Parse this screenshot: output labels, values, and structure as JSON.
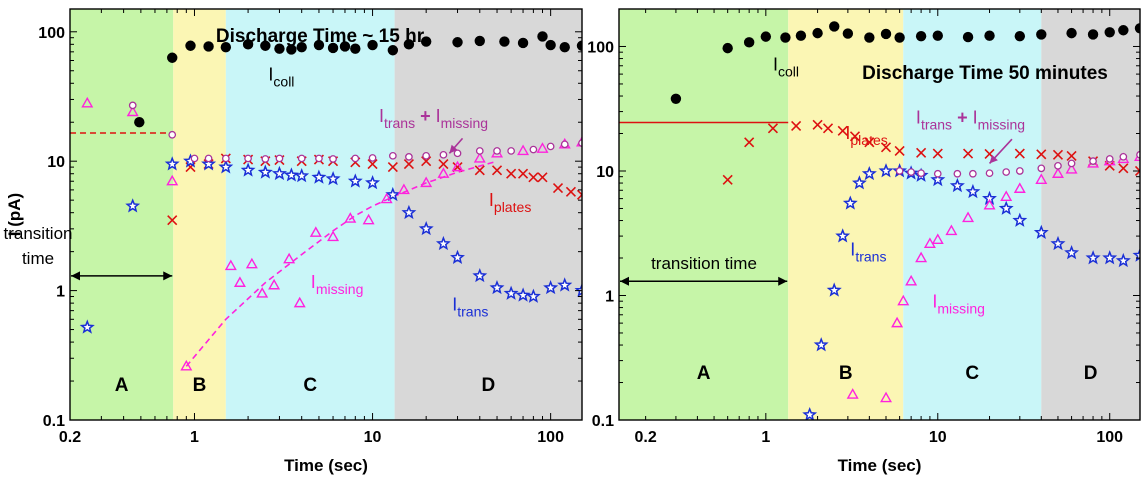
{
  "figure": {
    "panels": [
      "left",
      "right"
    ]
  },
  "chart_data": [
    {
      "type": "scatter",
      "title": "Discharge Time ~ 15 hr",
      "xlabel": "Time (sec)",
      "ylabel": "I (pA)",
      "x_scale": "log",
      "y_scale": "log",
      "xlim": [
        0.2,
        150
      ],
      "ylim": [
        0.1,
        150
      ],
      "x_ticks": [
        {
          "v": 0.2,
          "label": "0.2"
        },
        {
          "v": 1,
          "label": "1"
        },
        {
          "v": 10,
          "label": "10"
        },
        {
          "v": 100,
          "label": "100"
        }
      ],
      "y_ticks": [
        {
          "v": 0.1,
          "label": "0.1"
        },
        {
          "v": 1,
          "label": "1"
        },
        {
          "v": 10,
          "label": "10"
        },
        {
          "v": 100,
          "label": "100"
        }
      ],
      "regions": [
        {
          "label": "A",
          "from": 0.2,
          "to": 0.76,
          "color": "#c6f5a8"
        },
        {
          "label": "B",
          "from": 0.76,
          "to": 1.5,
          "color": "#fbf6b4"
        },
        {
          "label": "C",
          "from": 1.5,
          "to": 13.3,
          "color": "#c9f6f8"
        },
        {
          "label": "D",
          "from": 13.3,
          "to": 150,
          "color": "#d8d8d8"
        }
      ],
      "transition_label": "transition time",
      "transition_arrow": {
        "from": 0.2,
        "to": 0.76,
        "y": 1.3
      },
      "series": [
        {
          "name": "I_coll",
          "label_base": "I",
          "label_sub": "coll",
          "color": "#000000",
          "marker": "filled-circle",
          "x": [
            0.49,
            0.75,
            0.95,
            1.2,
            1.5,
            2,
            2.5,
            3,
            3.5,
            4,
            5,
            6,
            7,
            8,
            10,
            13,
            16,
            20,
            30,
            40,
            55,
            70,
            90,
            100,
            120,
            150
          ],
          "y": [
            20,
            63,
            78,
            77,
            76,
            80,
            78,
            74,
            73,
            76,
            79,
            75,
            77,
            74,
            79,
            72,
            80,
            84,
            83,
            85,
            84,
            82,
            92,
            79,
            76,
            78
          ]
        },
        {
          "name": "I_plates",
          "label_base": "I",
          "label_sub": "plates",
          "color": "#dd1111",
          "marker": "x",
          "x": [
            0.75,
            0.95,
            1.2,
            1.5,
            2,
            2.5,
            3,
            4,
            5,
            6,
            8,
            10,
            13,
            16,
            20,
            25,
            30,
            40,
            50,
            60,
            70,
            80,
            90,
            110,
            130,
            150
          ],
          "y": [
            3.5,
            9,
            9.5,
            10.5,
            10.3,
            10,
            10.2,
            10,
            10.3,
            10,
            9.8,
            9.5,
            9,
            9.5,
            10,
            9.5,
            9,
            8.5,
            8.5,
            8,
            8,
            7.5,
            7.5,
            6.2,
            5.8,
            5.5
          ]
        },
        {
          "name": "I_trans",
          "label_base": "I",
          "label_sub": "trans",
          "color": "#1a2fd6",
          "marker": "star",
          "x": [
            0.25,
            0.45,
            0.75,
            0.95,
            1.2,
            1.5,
            2,
            2.5,
            3,
            3.5,
            4,
            5,
            6,
            8,
            10,
            13,
            16,
            20,
            25,
            30,
            40,
            50,
            60,
            70,
            80,
            100,
            120,
            150
          ],
          "y": [
            0.52,
            4.5,
            9.5,
            10,
            9.5,
            9,
            8.5,
            8.2,
            8,
            7.8,
            7.7,
            7.5,
            7.3,
            7,
            6.8,
            5.5,
            4,
            3,
            2.3,
            1.8,
            1.3,
            1.05,
            0.95,
            0.92,
            0.9,
            1.05,
            1.1,
            1.0
          ]
        },
        {
          "name": "I_missing",
          "label_base": "I",
          "label_sub": "missing",
          "color": "#ff22dd",
          "marker": "open-triangle",
          "x": [
            0.25,
            0.45,
            0.75,
            0.9,
            1.6,
            1.8,
            2.1,
            2.4,
            2.8,
            3.4,
            3.9,
            4.8,
            6,
            7.5,
            9.5,
            12,
            15,
            20,
            25,
            30,
            40,
            50,
            70,
            90,
            120,
            150
          ],
          "y": [
            28,
            24,
            7,
            0.26,
            1.55,
            1.15,
            1.6,
            0.95,
            1.1,
            1.75,
            0.8,
            2.8,
            2.6,
            3.6,
            3.5,
            5.1,
            6,
            6.8,
            8,
            9,
            10.5,
            11.5,
            12,
            12.5,
            13.5,
            14
          ]
        },
        {
          "name": "I_trans + I_missing",
          "color": "#aa3399",
          "marker": "open-circle",
          "x": [
            0.45,
            0.75,
            1.0,
            1.2,
            1.5,
            2,
            2.5,
            3,
            4,
            5,
            6,
            8,
            10,
            13,
            16,
            20,
            25,
            30,
            40,
            50,
            60,
            80,
            100,
            120,
            150
          ],
          "y": [
            27,
            16,
            10.5,
            10.5,
            10.5,
            10.5,
            10.4,
            10.5,
            10.5,
            10.5,
            10.4,
            10.5,
            10.6,
            11,
            10.8,
            11,
            11.2,
            11.5,
            12,
            12,
            12,
            12.3,
            13,
            13.5,
            13.8
          ]
        }
      ],
      "fit_lines": [
        {
          "name": "I_plates fit",
          "color": "#dd1111",
          "dashed": true,
          "x": [
            0.2,
            0.76
          ],
          "y": [
            16.5,
            16.5
          ]
        },
        {
          "name": "I_missing fit",
          "color": "#ff22dd",
          "dashed": true,
          "x": [
            0.9,
            1.5,
            2.5,
            4,
            6,
            8,
            10,
            13,
            20,
            30,
            50
          ],
          "y": [
            0.26,
            0.6,
            1.15,
            1.9,
            2.9,
            3.8,
            4.5,
            5.3,
            6.8,
            8.2,
            10
          ]
        }
      ],
      "annotations": [
        {
          "kind": "sum-label",
          "series_a": {
            "base": "I",
            "sub": "trans"
          },
          "op": "+",
          "series_b": {
            "base": "I",
            "sub": "missing"
          },
          "color": "#aa3399",
          "x": 22,
          "y": 20
        },
        {
          "kind": "arrow",
          "color": "#aa3399",
          "from": [
            32,
            15
          ],
          "to": [
            27,
            11.5
          ]
        }
      ],
      "label_positions": {
        "I_coll": [
          2.6,
          42
        ],
        "I_plates": [
          45,
          4.5
        ],
        "I_trans": [
          28,
          0.7
        ],
        "I_missing": [
          4.5,
          1.05
        ]
      }
    },
    {
      "type": "scatter",
      "title": "Discharge Time 50 minutes",
      "xlabel": "Time (sec)",
      "ylabel": "",
      "x_scale": "log",
      "y_scale": "log",
      "xlim": [
        0.14,
        150
      ],
      "ylim": [
        0.1,
        200
      ],
      "x_ticks": [
        {
          "v": 0.2,
          "label": "0.2"
        },
        {
          "v": 1,
          "label": "1"
        },
        {
          "v": 10,
          "label": "10"
        },
        {
          "v": 100,
          "label": "100"
        }
      ],
      "y_ticks": [
        {
          "v": 0.1,
          "label": "0.1"
        },
        {
          "v": 1,
          "label": "1"
        },
        {
          "v": 10,
          "label": "10"
        },
        {
          "v": 100,
          "label": "100"
        }
      ],
      "regions": [
        {
          "label": "A",
          "from": 0.14,
          "to": 1.35,
          "color": "#c6f5a8"
        },
        {
          "label": "B",
          "from": 1.35,
          "to": 6.3,
          "color": "#fbf6b4"
        },
        {
          "label": "C",
          "from": 6.3,
          "to": 40,
          "color": "#c9f6f8"
        },
        {
          "label": "D",
          "from": 40,
          "to": 150,
          "color": "#d8d8d8"
        }
      ],
      "transition_label": "transition time",
      "transition_arrow": {
        "from": 0.14,
        "to": 1.35,
        "y": 1.3
      },
      "series": [
        {
          "name": "I_coll",
          "label_base": "I",
          "label_sub": "coll",
          "color": "#000000",
          "marker": "filled-circle",
          "x": [
            0.3,
            0.6,
            0.8,
            1,
            1.3,
            1.6,
            2,
            2.5,
            3,
            4,
            5,
            6,
            8,
            10,
            15,
            20,
            30,
            40,
            60,
            80,
            100,
            120,
            150
          ],
          "y": [
            38,
            97,
            108,
            120,
            118,
            122,
            128,
            145,
            127,
            118,
            126,
            118,
            121,
            122,
            119,
            122,
            121,
            125,
            128,
            125,
            130,
            135,
            140
          ]
        },
        {
          "name": "I_plates",
          "label_base": "I",
          "label_sub": "plates",
          "color": "#dd1111",
          "marker": "x",
          "x": [
            0.6,
            0.8,
            1.1,
            1.5,
            2,
            2.3,
            2.8,
            3.3,
            4,
            5,
            6,
            8,
            10,
            15,
            20,
            30,
            40,
            50,
            60,
            80,
            100,
            120,
            150
          ],
          "y": [
            8.5,
            17,
            22,
            23,
            23.5,
            22,
            21,
            19,
            17,
            15.5,
            14.5,
            14,
            13.8,
            13.8,
            13.7,
            13.8,
            13.6,
            13.5,
            13.2,
            12,
            11,
            10.5,
            10
          ]
        },
        {
          "name": "I_trans",
          "label_base": "I",
          "label_sub": "trans",
          "color": "#1a2fd6",
          "marker": "star",
          "x": [
            1.8,
            2.1,
            2.5,
            2.8,
            3.1,
            3.5,
            4,
            5,
            6,
            7,
            8,
            10,
            13,
            16,
            20,
            25,
            30,
            40,
            50,
            60,
            80,
            100,
            120,
            150
          ],
          "y": [
            0.11,
            0.4,
            1.1,
            3,
            5.5,
            8,
            9.5,
            10,
            10,
            9.6,
            9.2,
            8.5,
            7.6,
            6.8,
            6,
            5,
            4,
            3.2,
            2.6,
            2.2,
            2,
            2,
            1.9,
            2.1
          ]
        },
        {
          "name": "I_missing",
          "label_base": "I",
          "label_sub": "missing",
          "color": "#ff22dd",
          "marker": "open-triangle",
          "x": [
            3.2,
            5,
            5.8,
            6.3,
            7,
            8,
            9,
            10,
            12,
            15,
            20,
            25,
            30,
            40,
            50,
            60,
            80,
            100,
            120,
            150
          ],
          "y": [
            0.16,
            0.15,
            0.6,
            0.9,
            1.3,
            2,
            2.6,
            2.8,
            3.3,
            4.2,
            5.3,
            6.2,
            7.2,
            8.5,
            9.5,
            10.3,
            11.5,
            12,
            12.5,
            13
          ]
        },
        {
          "name": "I_trans + I_missing",
          "color": "#aa3399",
          "marker": "open-circle",
          "x": [
            6,
            7,
            8,
            10,
            13,
            16,
            20,
            25,
            30,
            40,
            50,
            60,
            80,
            100,
            120,
            150
          ],
          "y": [
            10,
            9.8,
            9.6,
            9.5,
            9.5,
            9.5,
            9.6,
            9.8,
            10,
            10.5,
            11,
            11.5,
            12,
            12.5,
            13,
            13.5
          ]
        }
      ],
      "fit_lines": [
        {
          "name": "I_plates fit",
          "color": "#dd1111",
          "dashed": false,
          "x": [
            0.14,
            1.35
          ],
          "y": [
            24.5,
            24.5
          ]
        }
      ],
      "annotations": [
        {
          "kind": "sum-label",
          "series_a": {
            "base": "I",
            "sub": "trans"
          },
          "op": "+",
          "series_b": {
            "base": "I",
            "sub": "missing"
          },
          "color": "#aa3399",
          "x": 15.5,
          "y": 24
        },
        {
          "kind": "arrow",
          "color": "#aa3399",
          "from": [
            27,
            18
          ],
          "to": [
            20,
            11.5
          ]
        }
      ],
      "label_positions": {
        "I_coll": [
          1.1,
          64
        ],
        "I_plates": [
          2.9,
          18
        ],
        "I_trans": [
          3.1,
          2.1
        ],
        "I_missing": [
          9.3,
          0.8
        ]
      }
    }
  ]
}
